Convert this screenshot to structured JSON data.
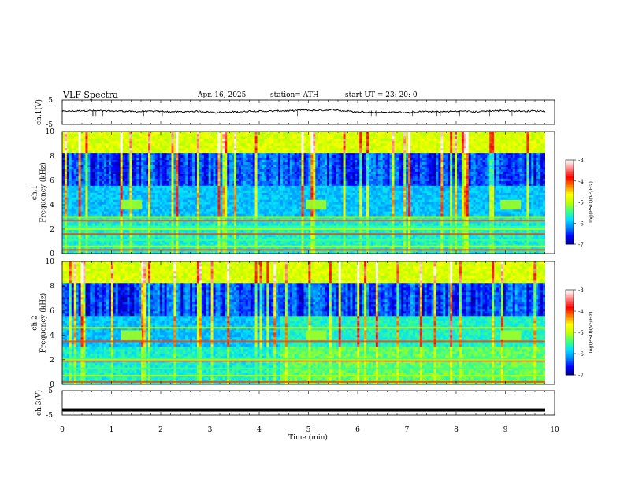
{
  "header": {
    "title": "VLF  Spectra",
    "date": "Apr. 16, 2025",
    "station": "station= ATH",
    "start_ut": "start  UT  =   23: 20: 0"
  },
  "chart_data": [
    {
      "type": "line",
      "panel": "ch1-waveform",
      "ylabel": "ch.1(V)",
      "xlim": [
        0,
        10
      ],
      "ylim": [
        -5,
        5
      ],
      "yticks": [
        "5",
        "-5"
      ],
      "series": [
        {
          "mean": 0.3,
          "amplitude": 0.6
        }
      ]
    },
    {
      "type": "heatmap",
      "panel": "ch1-spectrogram",
      "ylabel": "ch.1\nFrequency (kHz)",
      "xlim": [
        0,
        10
      ],
      "ylim": [
        0,
        10
      ],
      "yticks": [
        "0",
        "2",
        "4",
        "6",
        "8",
        "10"
      ],
      "colorbar": {
        "label": "log(PSD)(V²/Hz)",
        "range": [
          -7,
          -3
        ],
        "ticks": [
          "-3",
          "-4",
          "-5",
          "-6",
          "-7"
        ]
      },
      "features": {
        "blocks_x_min": [
          1.2,
          4.95,
          8.9
        ],
        "blocks_freq_khz": [
          3.6,
          4.4
        ],
        "line_freqs_khz": [
          0.3,
          0.6,
          1.1,
          1.6,
          2.0,
          2.2,
          2.7,
          3.0
        ]
      }
    },
    {
      "type": "heatmap",
      "panel": "ch2-spectrogram",
      "ylabel": "ch.2\nFrequency (kHz)",
      "xlim": [
        0,
        10
      ],
      "ylim": [
        0,
        10
      ],
      "yticks": [
        "0",
        "2",
        "4",
        "6",
        "8",
        "10"
      ],
      "colorbar": {
        "label": "log(PSD)(V²/Hz)",
        "range": [
          -7,
          -3
        ],
        "ticks": [
          "-3",
          "-4",
          "-5",
          "-6",
          "-7"
        ]
      },
      "features": {
        "blocks_x_min": [
          1.2,
          4.95,
          8.9
        ],
        "blocks_freq_khz": [
          3.6,
          4.4
        ],
        "line_freqs_khz": [
          0.2,
          0.7,
          1.3,
          1.9,
          2.0,
          2.1,
          3.5,
          4.6
        ]
      }
    },
    {
      "type": "line",
      "panel": "ch3-waveform",
      "ylabel": "ch.3(V)",
      "xlim": [
        0,
        10
      ],
      "ylim": [
        -5,
        5
      ],
      "yticks": [
        "5",
        "-5"
      ],
      "series": [
        {
          "mean": -2.8,
          "amplitude": 0.2
        }
      ]
    }
  ],
  "xaxis": {
    "label": "Time  (min)",
    "ticks": [
      "0",
      "1",
      "2",
      "3",
      "4",
      "5",
      "6",
      "7",
      "8",
      "9",
      "10"
    ]
  },
  "colors": {
    "colormap": [
      "#000080",
      "#0000ff",
      "#0080ff",
      "#00e0ff",
      "#40ff80",
      "#c0ff00",
      "#ffff00",
      "#ff8000",
      "#ff0000",
      "#ff8080",
      "#ffffff"
    ]
  }
}
